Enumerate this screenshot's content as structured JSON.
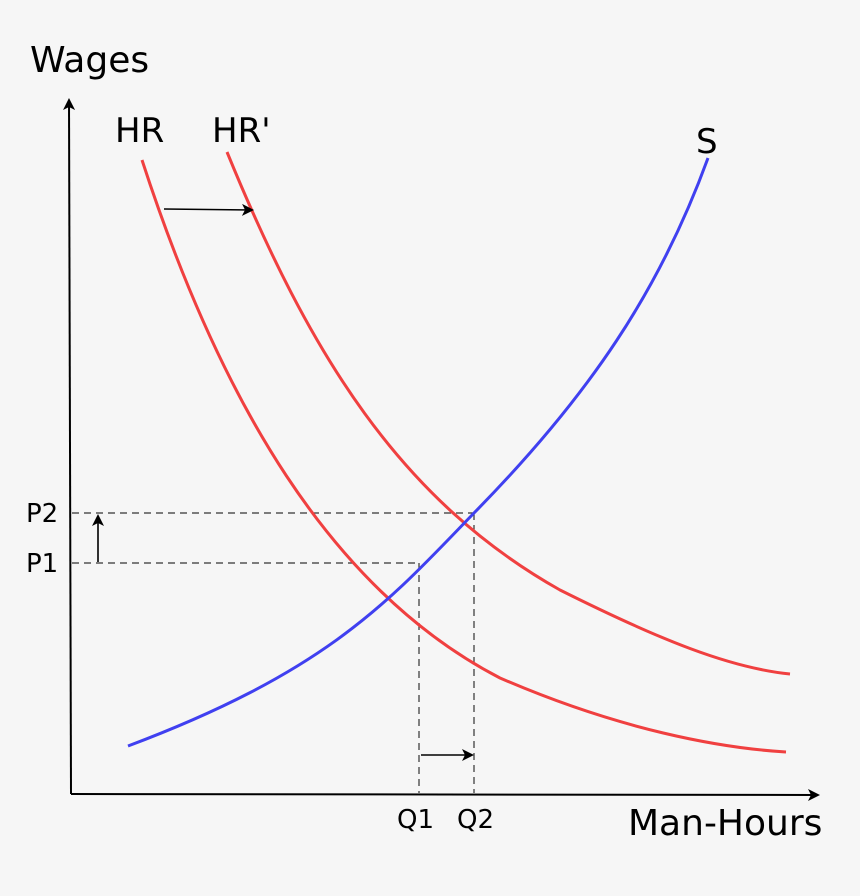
{
  "chart_data": {
    "type": "line",
    "ylabel": "Wages",
    "xlabel": "Man-Hours",
    "x_ticks": [
      "Q1",
      "Q2"
    ],
    "y_ticks": [
      "P2",
      "P1"
    ],
    "series": [
      {
        "name": "HR",
        "color": "#f04040",
        "role": "demand"
      },
      {
        "name": "HR'",
        "color": "#f04040",
        "role": "demand-shifted"
      },
      {
        "name": "S",
        "color": "#4040f0",
        "role": "supply"
      }
    ],
    "annotations": {
      "demand_shift": "right",
      "price_change": "P1 to P2",
      "quantity_change": "Q1 to Q2"
    }
  }
}
